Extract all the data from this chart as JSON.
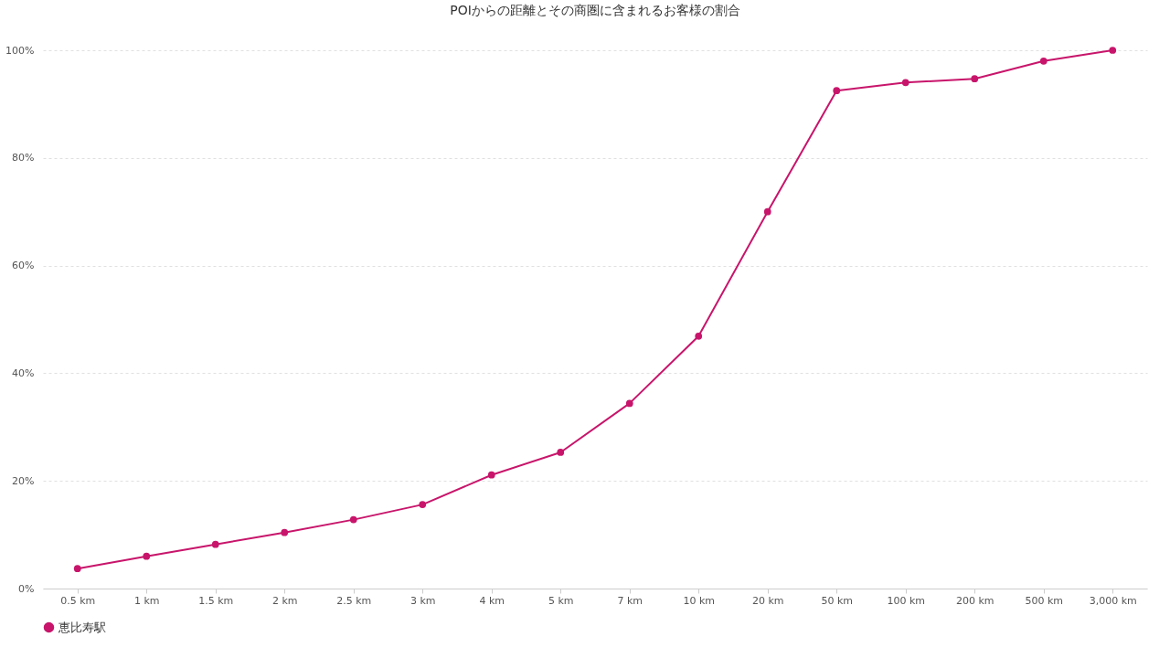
{
  "chart_data": {
    "type": "line",
    "title": "POIからの距離とその商圏に含まれるお客様の割合",
    "categories": [
      "0.5 km",
      "1 km",
      "1.5 km",
      "2 km",
      "2.5 km",
      "3 km",
      "4 km",
      "5 km",
      "7 km",
      "10 km",
      "20 km",
      "50 km",
      "100 km",
      "200 km",
      "500 km",
      "3,000 km"
    ],
    "series": [
      {
        "name": "恵比寿駅",
        "color": "#c8156b",
        "values": [
          3.7,
          6.0,
          8.2,
          10.4,
          12.8,
          15.6,
          21.1,
          25.3,
          34.4,
          46.9,
          70.0,
          92.5,
          94.0,
          94.7,
          98.0,
          100
        ]
      }
    ],
    "ylim": [
      0,
      100
    ],
    "yticks": [
      {
        "value": 0,
        "label": "0%"
      },
      {
        "value": 20,
        "label": "20%"
      },
      {
        "value": 40,
        "label": "40%"
      },
      {
        "value": 60,
        "label": "60%"
      },
      {
        "value": 80,
        "label": "80%"
      },
      {
        "value": 100,
        "label": "100%"
      }
    ],
    "grid": "y",
    "legend": "bottom",
    "marker": "circle",
    "line_style": "solid"
  }
}
